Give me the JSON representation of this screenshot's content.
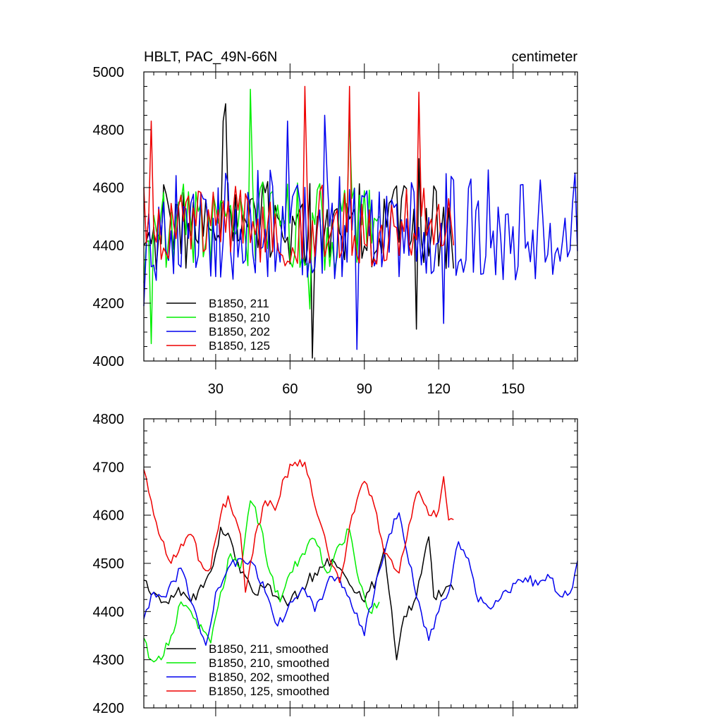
{
  "chart_data": [
    {
      "type": "line",
      "title": "HBLT, PAC_49N-66N",
      "units": "centimeter",
      "xlim": [
        1,
        176
      ],
      "ylim": [
        4000,
        5000
      ],
      "xticks": [
        30,
        60,
        90,
        120,
        150
      ],
      "yticks": [
        4000,
        4200,
        4400,
        4600,
        4800,
        5000
      ],
      "legend_position": "bottom-left",
      "series": [
        {
          "name": "B1850, 211",
          "color": "#000000",
          "n": 126,
          "amplitude": 120,
          "seed": 211,
          "anchors": [
            [
              1,
              4400
            ],
            [
              33,
              4830
            ],
            [
              34,
              4890
            ],
            [
              69,
              4010
            ],
            [
              71,
              4500
            ],
            [
              111,
              4110
            ],
            [
              112,
              4700
            ],
            [
              126,
              4320
            ]
          ]
        },
        {
          "name": "B1850, 210",
          "color": "#00ee00",
          "n": 96,
          "amplitude": 120,
          "seed": 210,
          "anchors": [
            [
              1,
              4270
            ],
            [
              4,
              4060
            ],
            [
              44,
              4940
            ],
            [
              68,
              4180
            ],
            [
              84,
              4850
            ],
            [
              96,
              4500
            ]
          ]
        },
        {
          "name": "B1850, 202",
          "color": "#0000ee",
          "n": 176,
          "amplitude": 150,
          "seed": 202,
          "anchors": [
            [
              1,
              4190
            ],
            [
              59,
              4830
            ],
            [
              74,
              4850
            ],
            [
              87,
              4040
            ],
            [
              122,
              4130
            ],
            [
              175,
              4650
            ],
            [
              176,
              4380
            ]
          ]
        },
        {
          "name": "B1850, 125",
          "color": "#ee0000",
          "n": 126,
          "amplitude": 110,
          "seed": 125,
          "anchors": [
            [
              1,
              4600
            ],
            [
              4,
              4830
            ],
            [
              66,
              4950
            ],
            [
              84,
              4950
            ],
            [
              112,
              4930
            ],
            [
              126,
              4400
            ]
          ]
        }
      ]
    },
    {
      "type": "line",
      "title": "",
      "xlim": [
        1,
        176
      ],
      "ylim": [
        4200,
        4800
      ],
      "yticks": [
        4200,
        4300,
        4400,
        4500,
        4600,
        4700,
        4800
      ],
      "xticks": [
        30,
        60,
        90,
        120,
        150
      ],
      "legend_position": "bottom-left",
      "series": [
        {
          "name": "B1850, 211, smoothed",
          "color": "#000000",
          "n": 126,
          "seed": 1211,
          "anchors": [
            [
              1,
              4465
            ],
            [
              5,
              4440
            ],
            [
              10,
              4420
            ],
            [
              15,
              4450
            ],
            [
              20,
              4420
            ],
            [
              25,
              4450
            ],
            [
              30,
              4520
            ],
            [
              32,
              4575
            ],
            [
              36,
              4550
            ],
            [
              40,
              4480
            ],
            [
              45,
              4440
            ],
            [
              50,
              4450
            ],
            [
              55,
              4430
            ],
            [
              60,
              4420
            ],
            [
              65,
              4450
            ],
            [
              70,
              4480
            ],
            [
              75,
              4510
            ],
            [
              80,
              4490
            ],
            [
              85,
              4450
            ],
            [
              90,
              4420
            ],
            [
              95,
              4470
            ],
            [
              98,
              4530
            ],
            [
              100,
              4440
            ],
            [
              103,
              4300
            ],
            [
              106,
              4390
            ],
            [
              110,
              4420
            ],
            [
              114,
              4510
            ],
            [
              116,
              4555
            ],
            [
              118,
              4430
            ],
            [
              122,
              4440
            ],
            [
              126,
              4445
            ]
          ]
        },
        {
          "name": "B1850, 210, smoothed",
          "color": "#00ee00",
          "n": 96,
          "seed": 1210,
          "anchors": [
            [
              1,
              4345
            ],
            [
              4,
              4300
            ],
            [
              8,
              4300
            ],
            [
              12,
              4350
            ],
            [
              16,
              4420
            ],
            [
              20,
              4400
            ],
            [
              25,
              4360
            ],
            [
              28,
              4335
            ],
            [
              32,
              4440
            ],
            [
              36,
              4520
            ],
            [
              40,
              4490
            ],
            [
              43,
              4600
            ],
            [
              44,
              4630
            ],
            [
              48,
              4580
            ],
            [
              52,
              4480
            ],
            [
              56,
              4420
            ],
            [
              60,
              4480
            ],
            [
              65,
              4520
            ],
            [
              70,
              4550
            ],
            [
              75,
              4480
            ],
            [
              80,
              4540
            ],
            [
              84,
              4570
            ],
            [
              88,
              4460
            ],
            [
              92,
              4400
            ],
            [
              96,
              4420
            ]
          ]
        },
        {
          "name": "B1850, 202, smoothed",
          "color": "#0000ee",
          "n": 176,
          "seed": 1202,
          "anchors": [
            [
              1,
              4385
            ],
            [
              5,
              4440
            ],
            [
              10,
              4430
            ],
            [
              16,
              4490
            ],
            [
              20,
              4420
            ],
            [
              26,
              4330
            ],
            [
              30,
              4440
            ],
            [
              35,
              4490
            ],
            [
              40,
              4510
            ],
            [
              45,
              4500
            ],
            [
              50,
              4440
            ],
            [
              55,
              4370
            ],
            [
              60,
              4420
            ],
            [
              65,
              4450
            ],
            [
              70,
              4400
            ],
            [
              75,
              4460
            ],
            [
              80,
              4470
            ],
            [
              85,
              4410
            ],
            [
              90,
              4350
            ],
            [
              95,
              4470
            ],
            [
              100,
              4560
            ],
            [
              104,
              4605
            ],
            [
              108,
              4500
            ],
            [
              112,
              4420
            ],
            [
              116,
              4340
            ],
            [
              120,
              4400
            ],
            [
              124,
              4440
            ],
            [
              128,
              4545
            ],
            [
              132,
              4510
            ],
            [
              136,
              4420
            ],
            [
              142,
              4410
            ],
            [
              148,
              4440
            ],
            [
              155,
              4470
            ],
            [
              160,
              4455
            ],
            [
              165,
              4470
            ],
            [
              170,
              4430
            ],
            [
              174,
              4450
            ],
            [
              176,
              4505
            ]
          ]
        },
        {
          "name": "B1850, 125, smoothed",
          "color": "#ee0000",
          "n": 126,
          "seed": 1125,
          "anchors": [
            [
              1,
              4695
            ],
            [
              4,
              4630
            ],
            [
              8,
              4550
            ],
            [
              12,
              4500
            ],
            [
              16,
              4540
            ],
            [
              20,
              4560
            ],
            [
              25,
              4490
            ],
            [
              28,
              4490
            ],
            [
              32,
              4600
            ],
            [
              35,
              4640
            ],
            [
              40,
              4560
            ],
            [
              42,
              4440
            ],
            [
              46,
              4560
            ],
            [
              50,
              4630
            ],
            [
              54,
              4610
            ],
            [
              58,
              4680
            ],
            [
              62,
              4710
            ],
            [
              66,
              4710
            ],
            [
              70,
              4620
            ],
            [
              75,
              4530
            ],
            [
              80,
              4460
            ],
            [
              85,
              4600
            ],
            [
              90,
              4670
            ],
            [
              94,
              4620
            ],
            [
              98,
              4520
            ],
            [
              104,
              4480
            ],
            [
              108,
              4580
            ],
            [
              112,
              4650
            ],
            [
              116,
              4600
            ],
            [
              120,
              4610
            ],
            [
              122,
              4680
            ],
            [
              124,
              4590
            ]
          ]
        }
      ]
    }
  ]
}
